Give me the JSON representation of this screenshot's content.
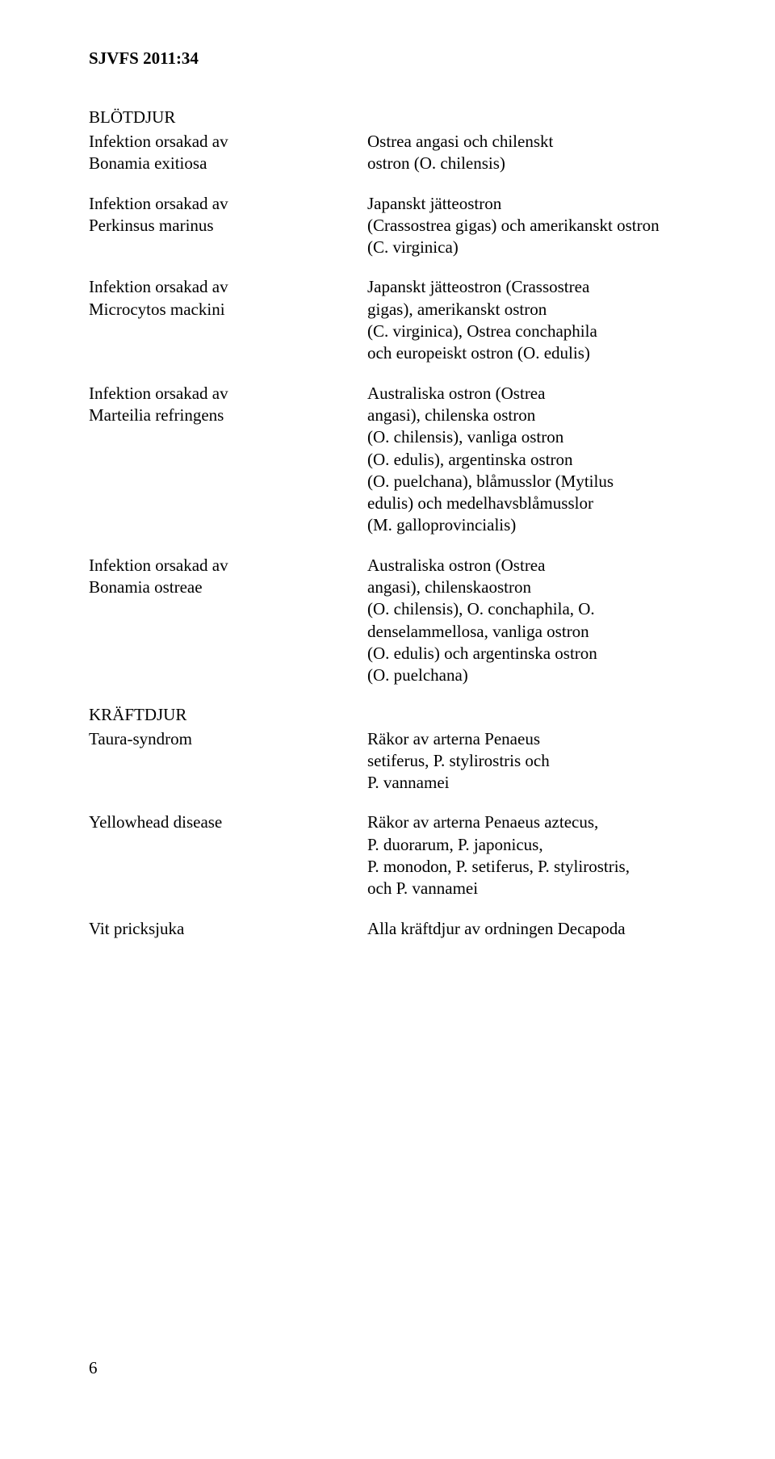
{
  "header": "SJVFS 2011:34",
  "sections": [
    {
      "heading": "BLÖTDJUR",
      "rows": [
        {
          "left": "Infektion orsakad av\nBonamia exitiosa",
          "right": "Ostrea angasi och chilenskt\nostron (O. chilensis)"
        },
        {
          "left": "Infektion orsakad av\nPerkinsus marinus",
          "right": "Japanskt jätteostron\n(Crassostrea gigas) och amerikanskt ostron\n(C. virginica)"
        },
        {
          "left": "Infektion orsakad av\nMicrocytos mackini",
          "right": "Japanskt jätteostron (Crassostrea\ngigas), amerikanskt ostron\n(C. virginica), Ostrea conchaphila\noch europeiskt ostron (O. edulis)"
        },
        {
          "left": "Infektion orsakad av\nMarteilia refringens",
          "right": "Australiska ostron (Ostrea\nangasi), chilenska ostron\n(O. chilensis), vanliga ostron\n(O. edulis), argentinska ostron\n(O. puelchana), blåmusslor (Mytilus\nedulis) och medelhavsblåmusslor\n(M. galloprovincialis)"
        },
        {
          "left": "Infektion orsakad av\nBonamia ostreae",
          "right": "Australiska ostron (Ostrea\nangasi), chilenskaostron\n(O. chilensis), O. conchaphila, O.\ndenselammellosa, vanliga ostron\n(O. edulis) och argentinska ostron\n(O. puelchana)"
        }
      ]
    },
    {
      "heading": "KRÄFTDJUR",
      "rows": [
        {
          "left": "Taura-syndrom",
          "right": "Räkor av arterna Penaeus\nsetiferus, P. stylirostris och\nP. vannamei"
        },
        {
          "left": "Yellowhead disease",
          "right": "Räkor av arterna Penaeus aztecus,\nP. duorarum, P. japonicus,\nP. monodon, P. setiferus, P. stylirostris,\noch P. vannamei"
        },
        {
          "left": "Vit pricksjuka",
          "right": "Alla kräftdjur av ordningen Decapoda"
        }
      ]
    }
  ],
  "pageNumber": "6"
}
